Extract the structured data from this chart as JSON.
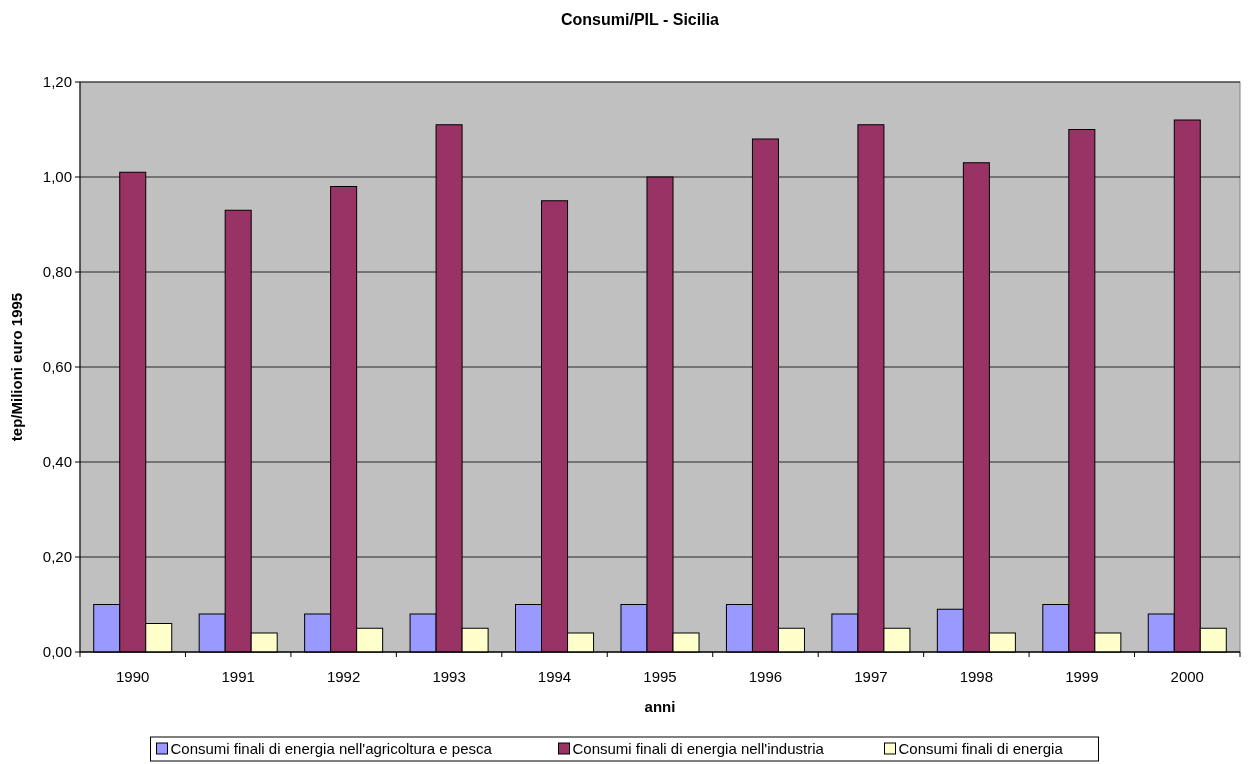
{
  "chart_data": {
    "type": "bar",
    "title": "Consumi/PIL - Sicilia",
    "xlabel": "anni",
    "ylabel": "tep/Milioni euro 1995",
    "categories": [
      "1990",
      "1991",
      "1992",
      "1993",
      "1994",
      "1995",
      "1996",
      "1997",
      "1998",
      "1999",
      "2000"
    ],
    "series": [
      {
        "name": "Consumi finali di energia nell'agricoltura e pesca",
        "color": "#9999ff",
        "values": [
          0.1,
          0.08,
          0.08,
          0.08,
          0.1,
          0.1,
          0.1,
          0.08,
          0.09,
          0.1,
          0.08
        ]
      },
      {
        "name": "Consumi finali di energia nell'industria",
        "color": "#993366",
        "values": [
          1.01,
          0.93,
          0.98,
          1.11,
          0.95,
          1.0,
          1.08,
          1.11,
          1.03,
          1.1,
          1.12
        ]
      },
      {
        "name": "Consumi finali di energia",
        "color": "#ffffcc",
        "values": [
          0.06,
          0.04,
          0.05,
          0.05,
          0.04,
          0.04,
          0.05,
          0.05,
          0.04,
          0.04,
          0.05
        ]
      }
    ],
    "ylim": [
      0,
      1.2
    ],
    "yticks": [
      {
        "value": 0,
        "label": "0,00"
      },
      {
        "value": 0.2,
        "label": "0,20"
      },
      {
        "value": 0.4,
        "label": "0,40"
      },
      {
        "value": 0.6,
        "label": "0,60"
      },
      {
        "value": 0.8,
        "label": "0,80"
      },
      {
        "value": 1,
        "label": "1,00"
      },
      {
        "value": 1.2,
        "label": "1,20"
      }
    ],
    "grid": "y",
    "legend": "bottom"
  }
}
